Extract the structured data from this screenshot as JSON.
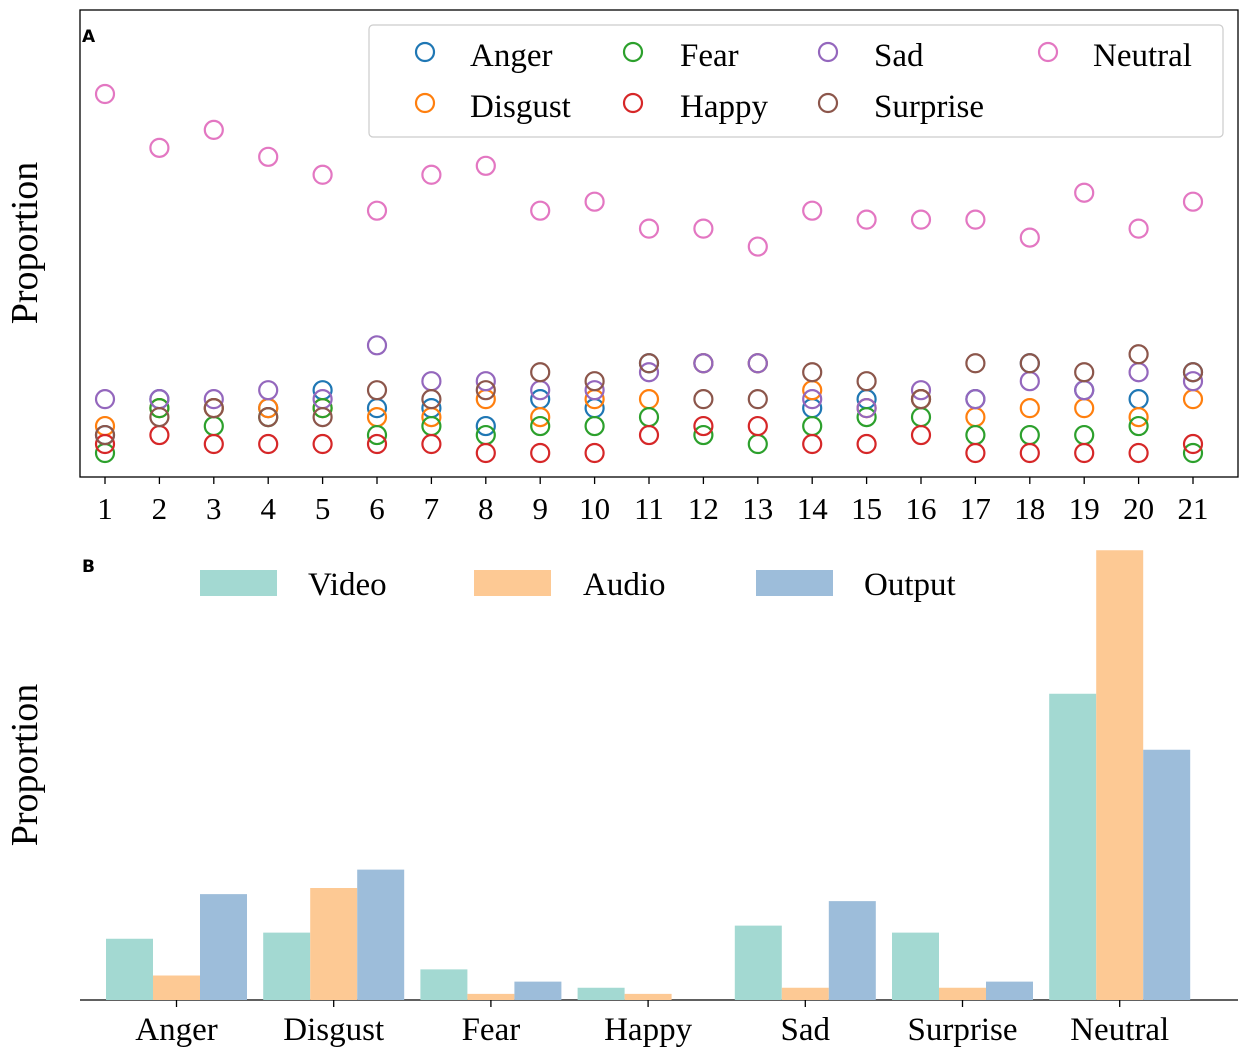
{
  "chart_data": [
    {
      "panel_label": "A",
      "type": "scatter",
      "ylabel": "Proportion",
      "xlabel": "",
      "x": [
        1,
        2,
        3,
        4,
        5,
        6,
        7,
        8,
        9,
        10,
        11,
        12,
        13,
        14,
        15,
        16,
        17,
        18,
        19,
        20,
        21
      ],
      "x_tick_labels": [
        "1",
        "2",
        "3",
        "4",
        "5",
        "6",
        "7",
        "8",
        "9",
        "10",
        "11",
        "12",
        "13",
        "14",
        "15",
        "16",
        "17",
        "18",
        "19",
        "20",
        "21"
      ],
      "ylim": [
        0,
        45
      ],
      "y_ticks_visible": false,
      "legend_position": "top-right",
      "series": [
        {
          "name": "Anger",
          "color": "#1f77b4",
          "values": [
            2.0,
            6.0,
            5.0,
            5.0,
            7.0,
            5.0,
            5.0,
            3.0,
            6.0,
            5.0,
            10.0,
            10.0,
            10.0,
            5.0,
            6.0,
            6.0,
            6.0,
            10.0,
            7.0,
            6.0,
            9.0
          ]
        },
        {
          "name": "Disgust",
          "color": "#ff7f0e",
          "values": [
            3.0,
            5.0,
            5.0,
            5.0,
            5.0,
            4.0,
            4.0,
            6.0,
            4.0,
            6.0,
            6.0,
            10.0,
            10.0,
            7.0,
            5.0,
            6.0,
            4.0,
            5.0,
            5.0,
            4.0,
            6.0
          ]
        },
        {
          "name": "Fear",
          "color": "#2ca02c",
          "values": [
            0.0,
            5.0,
            3.0,
            4.0,
            5.0,
            2.0,
            3.0,
            2.0,
            3.0,
            3.0,
            4.0,
            2.0,
            1.0,
            3.0,
            4.0,
            4.0,
            2.0,
            2.0,
            2.0,
            3.0,
            0.0
          ]
        },
        {
          "name": "Happy",
          "color": "#d62728",
          "values": [
            1.0,
            2.0,
            1.0,
            1.0,
            1.0,
            1.0,
            1.0,
            0.0,
            0.0,
            0.0,
            2.0,
            3.0,
            3.0,
            1.0,
            1.0,
            2.0,
            0.0,
            0.0,
            0.0,
            0.0,
            1.0
          ]
        },
        {
          "name": "Sad",
          "color": "#9467bd",
          "values": [
            6.0,
            6.0,
            6.0,
            7.0,
            6.0,
            12.0,
            8.0,
            8.0,
            7.0,
            7.0,
            9.0,
            10.0,
            10.0,
            6.0,
            5.0,
            7.0,
            6.0,
            8.0,
            7.0,
            9.0,
            8.0
          ]
        },
        {
          "name": "Surprise",
          "color": "#8c564b",
          "values": [
            2.0,
            4.0,
            5.0,
            4.0,
            4.0,
            7.0,
            6.0,
            7.0,
            9.0,
            8.0,
            10.0,
            6.0,
            6.0,
            9.0,
            8.0,
            6.0,
            10.0,
            10.0,
            9.0,
            11.0,
            9.0
          ]
        },
        {
          "name": "Neutral",
          "color": "#e377c2",
          "values": [
            40.0,
            34.0,
            36.0,
            33.0,
            31.0,
            27.0,
            31.0,
            32.0,
            27.0,
            28.0,
            25.0,
            25.0,
            23.0,
            27.0,
            26.0,
            26.0,
            26.0,
            24.0,
            29.0,
            25.0,
            28.0
          ]
        }
      ]
    },
    {
      "panel_label": "B",
      "type": "bar",
      "ylabel": "Proportion",
      "xlabel": "",
      "categories": [
        "Anger",
        "Disgust",
        "Fear",
        "Happy",
        "Sad",
        "Surprise",
        "Neutral"
      ],
      "ylim": [
        0,
        0.5
      ],
      "y_ticks_visible": false,
      "legend_position": "top-center",
      "series": [
        {
          "name": "Video",
          "color": "#a3d9d2",
          "values": [
            0.07,
            0.077,
            0.035,
            0.014,
            0.085,
            0.077,
            0.35
          ]
        },
        {
          "name": "Audio",
          "color": "#fdc994",
          "values": [
            0.028,
            0.128,
            0.007,
            0.007,
            0.014,
            0.014,
            0.514
          ]
        },
        {
          "name": "Output",
          "color": "#9dbdda",
          "values": [
            0.121,
            0.149,
            0.021,
            0.0,
            0.113,
            0.021,
            0.286
          ]
        }
      ]
    }
  ]
}
